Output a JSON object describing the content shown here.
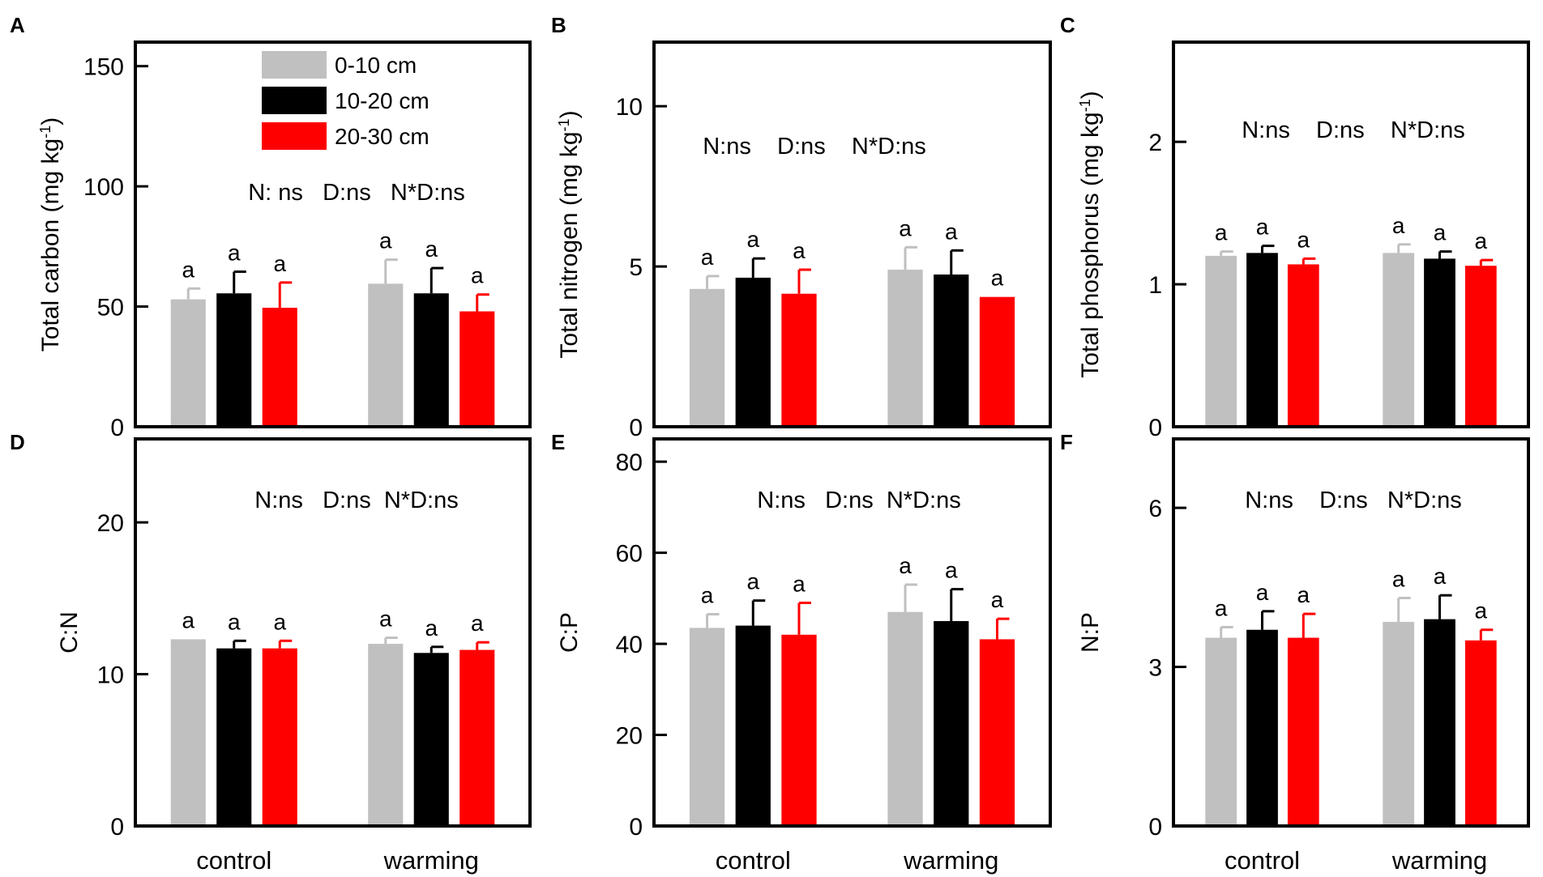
{
  "colors": {
    "0-10 cm": "#c0c0c0",
    "10-20 cm": "#000000",
    "20-30 cm": "#ff0000"
  },
  "chart_data": [
    {
      "panel": "A",
      "type": "bar",
      "ylabel": "Total carbon (mg kg",
      "ylabel_sup": "-1",
      "ylabel_end": ")",
      "ylim": [
        0,
        160
      ],
      "yticks": [
        0,
        50,
        100,
        150
      ],
      "categories": [
        "control",
        "warming"
      ],
      "show_xlabels": false,
      "stats_label": "N: ns   D:ns   N*D:ns",
      "legend": [
        "0-10 cm",
        "10-20 cm",
        "20-30 cm"
      ],
      "series": [
        {
          "name": "0-10 cm",
          "values": [
            53,
            59.5
          ],
          "errors": [
            4.5,
            10
          ],
          "letters": [
            "a",
            "a"
          ]
        },
        {
          "name": "10-20 cm",
          "values": [
            55.5,
            55.5
          ],
          "errors": [
            9,
            10.5
          ],
          "letters": [
            "a",
            "a"
          ]
        },
        {
          "name": "20-30 cm",
          "values": [
            49.5,
            48
          ],
          "errors": [
            10.5,
            7
          ],
          "letters": [
            "a",
            "a"
          ]
        }
      ]
    },
    {
      "panel": "B",
      "type": "bar",
      "ylabel": "Total nitrogen (mg kg",
      "ylabel_sup": "-1",
      "ylabel_end": ")",
      "ylim": [
        0,
        12
      ],
      "yticks": [
        0,
        5,
        10
      ],
      "categories": [
        "control",
        "warming"
      ],
      "show_xlabels": false,
      "stats_label": "N:ns    D:ns    N*D:ns",
      "series": [
        {
          "name": "0-10 cm",
          "values": [
            4.3,
            4.9
          ],
          "errors": [
            0.4,
            0.7
          ],
          "letters": [
            "a",
            "a"
          ]
        },
        {
          "name": "10-20 cm",
          "values": [
            4.65,
            4.75
          ],
          "errors": [
            0.6,
            0.75
          ],
          "letters": [
            "a",
            "a"
          ]
        },
        {
          "name": "20-30 cm",
          "values": [
            4.15,
            4.05
          ],
          "errors": [
            0.75,
            0
          ],
          "letters": [
            "a",
            "a"
          ]
        }
      ]
    },
    {
      "panel": "C",
      "type": "bar",
      "ylabel": "Total phosphorus (mg kg",
      "ylabel_sup": "-1",
      "ylabel_end": ")",
      "ylim": [
        0,
        2.7
      ],
      "yticks": [
        0,
        1,
        2
      ],
      "categories": [
        "control",
        "warming"
      ],
      "show_xlabels": false,
      "stats_label": "N:ns    D:ns    N*D:ns",
      "series": [
        {
          "name": "0-10 cm",
          "values": [
            1.2,
            1.22
          ],
          "errors": [
            0.03,
            0.06
          ],
          "letters": [
            "a",
            "a"
          ]
        },
        {
          "name": "10-20 cm",
          "values": [
            1.22,
            1.18
          ],
          "errors": [
            0.05,
            0.05
          ],
          "letters": [
            "a",
            "a"
          ]
        },
        {
          "name": "20-30 cm",
          "values": [
            1.14,
            1.13
          ],
          "errors": [
            0.04,
            0.04
          ],
          "letters": [
            "a",
            "a"
          ]
        }
      ]
    },
    {
      "panel": "D",
      "type": "bar",
      "ylabel": "C:N",
      "ylim": [
        0,
        25.5
      ],
      "yticks": [
        0,
        10,
        20
      ],
      "categories": [
        "control",
        "warming"
      ],
      "show_xlabels": true,
      "stats_label": "N:ns   D:ns  N*D:ns",
      "series": [
        {
          "name": "0-10 cm",
          "values": [
            12.3,
            12.0
          ],
          "errors": [
            0,
            0.4
          ],
          "letters": [
            "a",
            "a"
          ]
        },
        {
          "name": "10-20 cm",
          "values": [
            11.7,
            11.4
          ],
          "errors": [
            0.5,
            0.4
          ],
          "letters": [
            "a",
            "a"
          ]
        },
        {
          "name": "20-30 cm",
          "values": [
            11.7,
            11.6
          ],
          "errors": [
            0.5,
            0.5
          ],
          "letters": [
            "a",
            "a"
          ]
        }
      ]
    },
    {
      "panel": "E",
      "type": "bar",
      "ylabel": "C:P",
      "ylim": [
        0,
        85
      ],
      "yticks": [
        0,
        20,
        40,
        60,
        80
      ],
      "categories": [
        "control",
        "warming"
      ],
      "show_xlabels": true,
      "stats_label": "N:ns   D:ns  N*D:ns",
      "series": [
        {
          "name": "0-10 cm",
          "values": [
            43.5,
            47
          ],
          "errors": [
            3,
            6
          ],
          "letters": [
            "a",
            "a"
          ]
        },
        {
          "name": "10-20 cm",
          "values": [
            44,
            45
          ],
          "errors": [
            5.5,
            7
          ],
          "letters": [
            "a",
            "a"
          ]
        },
        {
          "name": "20-30 cm",
          "values": [
            42,
            41
          ],
          "errors": [
            7,
            4.5
          ],
          "letters": [
            "a",
            "a"
          ]
        }
      ]
    },
    {
      "panel": "F",
      "type": "bar",
      "ylabel": "N:P",
      "ylim": [
        0,
        7.3
      ],
      "yticks": [
        0,
        3,
        6
      ],
      "categories": [
        "control",
        "warming"
      ],
      "show_xlabels": true,
      "stats_label": "N:ns    D:ns   N*D:ns",
      "series": [
        {
          "name": "0-10 cm",
          "values": [
            3.55,
            3.85
          ],
          "errors": [
            0.2,
            0.45
          ],
          "letters": [
            "a",
            "a"
          ]
        },
        {
          "name": "10-20 cm",
          "values": [
            3.7,
            3.9
          ],
          "errors": [
            0.35,
            0.45
          ],
          "letters": [
            "a",
            "a"
          ]
        },
        {
          "name": "20-30 cm",
          "values": [
            3.55,
            3.5
          ],
          "errors": [
            0.45,
            0.2
          ],
          "letters": [
            "a",
            "a"
          ]
        }
      ]
    }
  ]
}
